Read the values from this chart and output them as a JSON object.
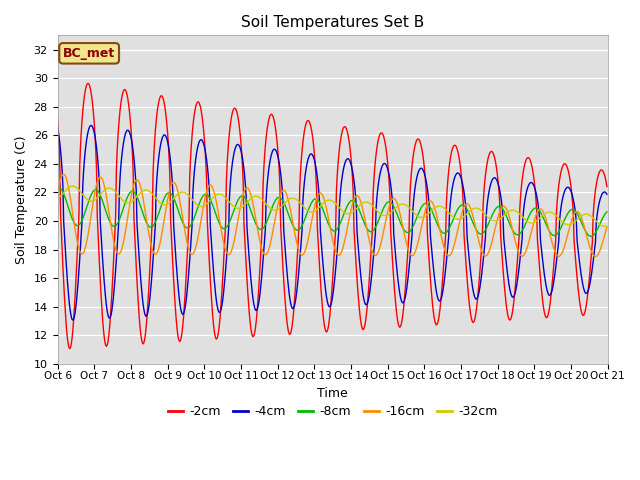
{
  "title": "Soil Temperatures Set B",
  "xlabel": "Time",
  "ylabel": "Soil Temperature (C)",
  "ylim": [
    10,
    33
  ],
  "yticks": [
    10,
    12,
    14,
    16,
    18,
    20,
    22,
    24,
    26,
    28,
    30,
    32
  ],
  "label_annotation": "BC_met",
  "bg_color": "#e0e0e0",
  "plot_bg": "#d8d8d8",
  "line_colors": {
    "-2cm": "#ff0000",
    "-4cm": "#0000cc",
    "-8cm": "#00bb00",
    "-16cm": "#ff8c00",
    "-32cm": "#cccc00"
  },
  "legend_order": [
    "-2cm",
    "-4cm",
    "-8cm",
    "-16cm",
    "-32cm"
  ],
  "n_days": 15,
  "start_day": 6,
  "samples_per_hour": 2
}
